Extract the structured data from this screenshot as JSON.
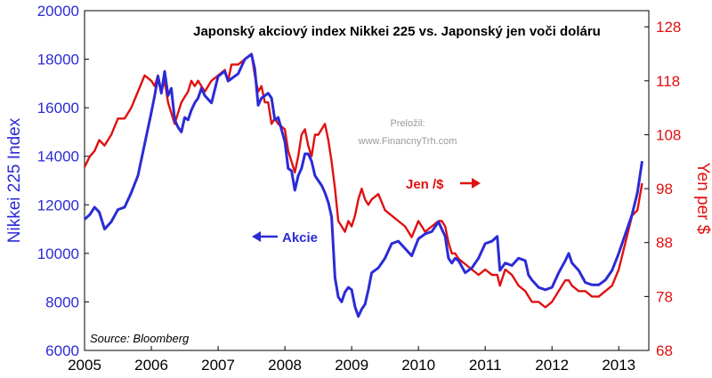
{
  "chart_data": {
    "type": "line",
    "title": "Japonský akciový index Nikkei 225 vs. Japonský jen voči doláru",
    "source": "Source: Bloomberg",
    "watermark": [
      "Preložil:",
      "www.FinancnyTrh.com"
    ],
    "x_ticks": [
      "2005",
      "2006",
      "2007",
      "2008",
      "2009",
      "2010",
      "2011",
      "2012",
      "2013"
    ],
    "xlim": [
      2005.0,
      2013.45
    ],
    "y_left": {
      "label": "Nikkei 225 Index",
      "ylim": [
        6000,
        20000
      ],
      "ticks": [
        "6000",
        "8000",
        "10000",
        "12000",
        "14000",
        "16000",
        "18000",
        "20000"
      ]
    },
    "y_right": {
      "label": "Yen per $",
      "ylim": [
        68,
        131
      ],
      "ticks": [
        "68",
        "78",
        "88",
        "98",
        "108",
        "118",
        "128"
      ]
    },
    "series": [
      {
        "name": "Akcie",
        "label": "Akcie",
        "axis": "left",
        "color": "#2b2bd6",
        "arrow": "left",
        "x": [
          2005.0,
          2005.08,
          2005.15,
          2005.22,
          2005.3,
          2005.4,
          2005.5,
          2005.6,
          2005.7,
          2005.8,
          2005.9,
          2006.0,
          2006.05,
          2006.1,
          2006.15,
          2006.2,
          2006.25,
          2006.3,
          2006.35,
          2006.4,
          2006.45,
          2006.5,
          2006.55,
          2006.6,
          2006.65,
          2006.7,
          2006.75,
          2006.8,
          2006.9,
          2007.0,
          2007.1,
          2007.15,
          2007.2,
          2007.3,
          2007.4,
          2007.5,
          2007.55,
          2007.6,
          2007.65,
          2007.7,
          2007.75,
          2007.8,
          2007.85,
          2007.9,
          2008.0,
          2008.05,
          2008.1,
          2008.15,
          2008.2,
          2008.25,
          2008.3,
          2008.35,
          2008.4,
          2008.45,
          2008.5,
          2008.55,
          2008.6,
          2008.65,
          2008.7,
          2008.75,
          2008.8,
          2008.85,
          2008.9,
          2008.95,
          2009.0,
          2009.05,
          2009.1,
          2009.15,
          2009.2,
          2009.25,
          2009.3,
          2009.4,
          2009.5,
          2009.6,
          2009.7,
          2009.8,
          2009.9,
          2010.0,
          2010.1,
          2010.2,
          2010.3,
          2010.35,
          2010.4,
          2010.45,
          2010.5,
          2010.55,
          2010.6,
          2010.7,
          2010.8,
          2010.9,
          2011.0,
          2011.1,
          2011.18,
          2011.22,
          2011.3,
          2011.4,
          2011.5,
          2011.6,
          2011.65,
          2011.7,
          2011.8,
          2011.9,
          2012.0,
          2012.1,
          2012.2,
          2012.25,
          2012.3,
          2012.4,
          2012.5,
          2012.6,
          2012.7,
          2012.8,
          2012.9,
          2013.0,
          2013.1,
          2013.2,
          2013.28,
          2013.35
        ],
        "y": [
          11400,
          11600,
          11900,
          11700,
          11000,
          11300,
          11800,
          11900,
          12500,
          13200,
          14500,
          15800,
          16500,
          17300,
          16600,
          17500,
          16500,
          16800,
          15500,
          15200,
          15000,
          15600,
          15500,
          15900,
          16200,
          16400,
          16800,
          16500,
          16200,
          17300,
          17500,
          17100,
          17200,
          17400,
          18000,
          18200,
          17600,
          16100,
          16400,
          16500,
          16600,
          16400,
          15500,
          15600,
          14600,
          13500,
          13400,
          12600,
          13200,
          13500,
          14100,
          14100,
          13800,
          13200,
          13000,
          12800,
          12500,
          12100,
          11500,
          9000,
          8200,
          8000,
          8400,
          8600,
          8500,
          7800,
          7400,
          7700,
          7900,
          8500,
          9200,
          9400,
          9800,
          10400,
          10500,
          10200,
          9900,
          10600,
          10800,
          10900,
          11300,
          11000,
          10700,
          9800,
          9600,
          9800,
          9700,
          9200,
          9400,
          9800,
          10400,
          10500,
          10700,
          9300,
          9600,
          9500,
          9800,
          9700,
          9100,
          8900,
          8600,
          8500,
          8600,
          9200,
          9700,
          10000,
          9600,
          9300,
          8800,
          8700,
          8700,
          8900,
          9300,
          10000,
          10800,
          11600,
          12500,
          13800
        ]
      },
      {
        "name": "Jen / $",
        "label": "Jen /$",
        "axis": "right",
        "color": "#e01010",
        "arrow": "right",
        "x": [
          2005.0,
          2005.08,
          2005.15,
          2005.22,
          2005.3,
          2005.4,
          2005.5,
          2005.6,
          2005.7,
          2005.8,
          2005.9,
          2006.0,
          2006.05,
          2006.1,
          2006.15,
          2006.2,
          2006.25,
          2006.3,
          2006.35,
          2006.4,
          2006.45,
          2006.5,
          2006.55,
          2006.6,
          2006.65,
          2006.7,
          2006.75,
          2006.8,
          2006.9,
          2007.0,
          2007.1,
          2007.15,
          2007.2,
          2007.3,
          2007.4,
          2007.5,
          2007.55,
          2007.6,
          2007.65,
          2007.7,
          2007.75,
          2007.8,
          2007.85,
          2007.9,
          2008.0,
          2008.05,
          2008.1,
          2008.15,
          2008.2,
          2008.25,
          2008.3,
          2008.35,
          2008.4,
          2008.45,
          2008.5,
          2008.55,
          2008.6,
          2008.65,
          2008.7,
          2008.75,
          2008.8,
          2008.85,
          2008.9,
          2008.95,
          2009.0,
          2009.05,
          2009.1,
          2009.15,
          2009.2,
          2009.25,
          2009.3,
          2009.4,
          2009.5,
          2009.6,
          2009.7,
          2009.8,
          2009.9,
          2010.0,
          2010.1,
          2010.2,
          2010.3,
          2010.35,
          2010.4,
          2010.45,
          2010.5,
          2010.55,
          2010.6,
          2010.7,
          2010.8,
          2010.9,
          2011.0,
          2011.1,
          2011.18,
          2011.22,
          2011.3,
          2011.4,
          2011.5,
          2011.6,
          2011.65,
          2011.7,
          2011.8,
          2011.9,
          2012.0,
          2012.1,
          2012.2,
          2012.25,
          2012.3,
          2012.4,
          2012.5,
          2012.6,
          2012.7,
          2012.8,
          2012.9,
          2013.0,
          2013.1,
          2013.2,
          2013.28,
          2013.35
        ],
        "y": [
          102,
          104,
          105,
          107,
          106,
          108,
          111,
          111,
          113,
          116,
          119,
          118,
          117,
          119,
          116,
          118,
          114,
          112,
          110,
          112,
          114,
          115,
          116,
          118,
          117,
          118,
          117,
          116,
          118,
          119,
          120,
          118,
          121,
          121,
          122,
          123,
          119,
          116,
          117,
          114,
          114,
          110,
          111,
          110,
          109,
          105,
          103,
          101,
          104,
          108,
          109,
          106,
          104,
          108,
          108,
          109,
          110,
          107,
          103,
          98,
          92,
          91,
          90,
          92,
          91,
          93,
          96,
          98,
          96,
          95,
          96,
          97,
          94,
          93,
          92,
          91,
          89,
          92,
          90,
          91,
          92,
          92,
          91,
          88,
          86,
          86,
          85,
          84,
          83,
          82,
          83,
          82,
          82,
          80,
          83,
          82,
          80,
          79,
          78,
          77,
          77,
          76,
          77,
          79,
          81,
          81,
          80,
          79,
          79,
          78,
          78,
          79,
          80,
          83,
          88,
          93,
          94,
          99
        ]
      }
    ]
  }
}
